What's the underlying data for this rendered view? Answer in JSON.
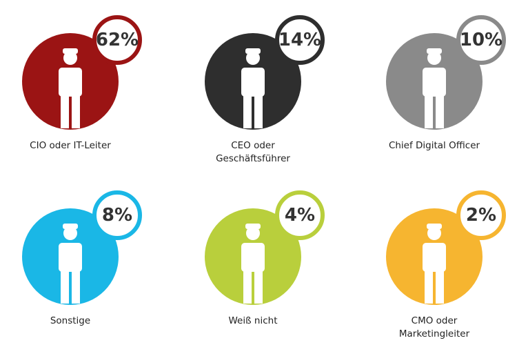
{
  "chart_data": {
    "type": "pictorial",
    "categories": [
      "CIO oder IT-Leiter",
      "CEO oder\nGeschäftsführer",
      "Chief Digital Officer",
      "Sonstige",
      "Weiß nicht",
      "CMO oder\nMarketingleiter"
    ],
    "values": [
      62,
      14,
      10,
      8,
      4,
      2
    ],
    "value_labels": [
      "62%",
      "14%",
      "10%",
      "8%",
      "4%",
      "2%"
    ],
    "colors": [
      "#9b1414",
      "#2e2e2e",
      "#8a8a8a",
      "#1ab7e6",
      "#b9cf3c",
      "#f6b530"
    ]
  }
}
